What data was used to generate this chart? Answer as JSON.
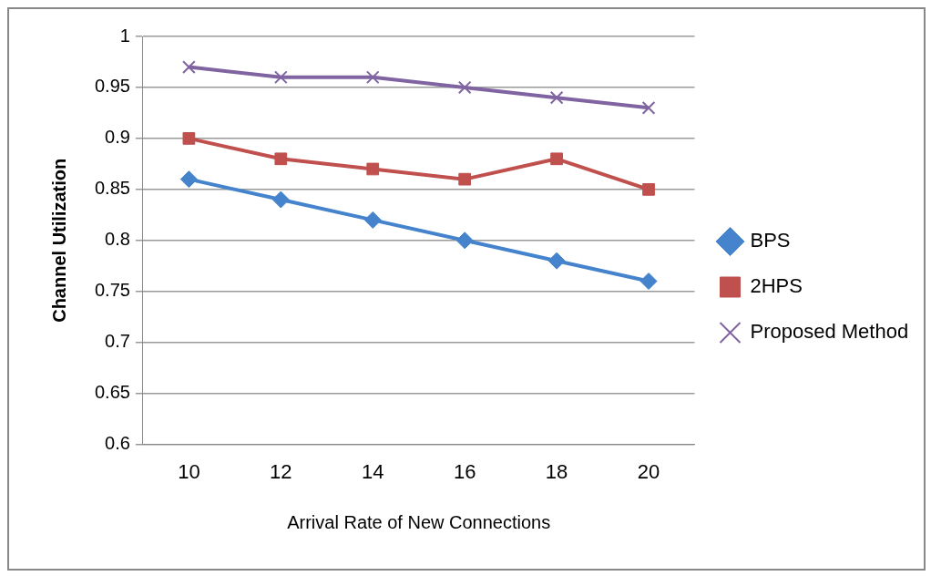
{
  "chart_data": {
    "type": "line",
    "xlabel": "Arrival Rate of New Connections",
    "ylabel": "Channel Utilization",
    "categories": [
      "10",
      "12",
      "14",
      "16",
      "18",
      "20"
    ],
    "series": [
      {
        "name": "BPS",
        "color": "#4584cc",
        "marker": "diamond",
        "values": [
          0.86,
          0.84,
          0.82,
          0.8,
          0.78,
          0.76
        ]
      },
      {
        "name": "2HPS",
        "color": "#c0504d",
        "marker": "square",
        "values": [
          0.9,
          0.88,
          0.87,
          0.86,
          0.88,
          0.85
        ]
      },
      {
        "name": "Proposed Method",
        "color": "#8064a2",
        "marker": "cross",
        "values": [
          0.97,
          0.96,
          0.96,
          0.95,
          0.94,
          0.93
        ]
      }
    ],
    "ylim": [
      0.6,
      1
    ],
    "yticks": [
      0.6,
      0.65,
      0.7,
      0.75,
      0.8,
      0.85,
      0.9,
      0.95,
      1
    ],
    "grid": "y",
    "legend": "right"
  }
}
